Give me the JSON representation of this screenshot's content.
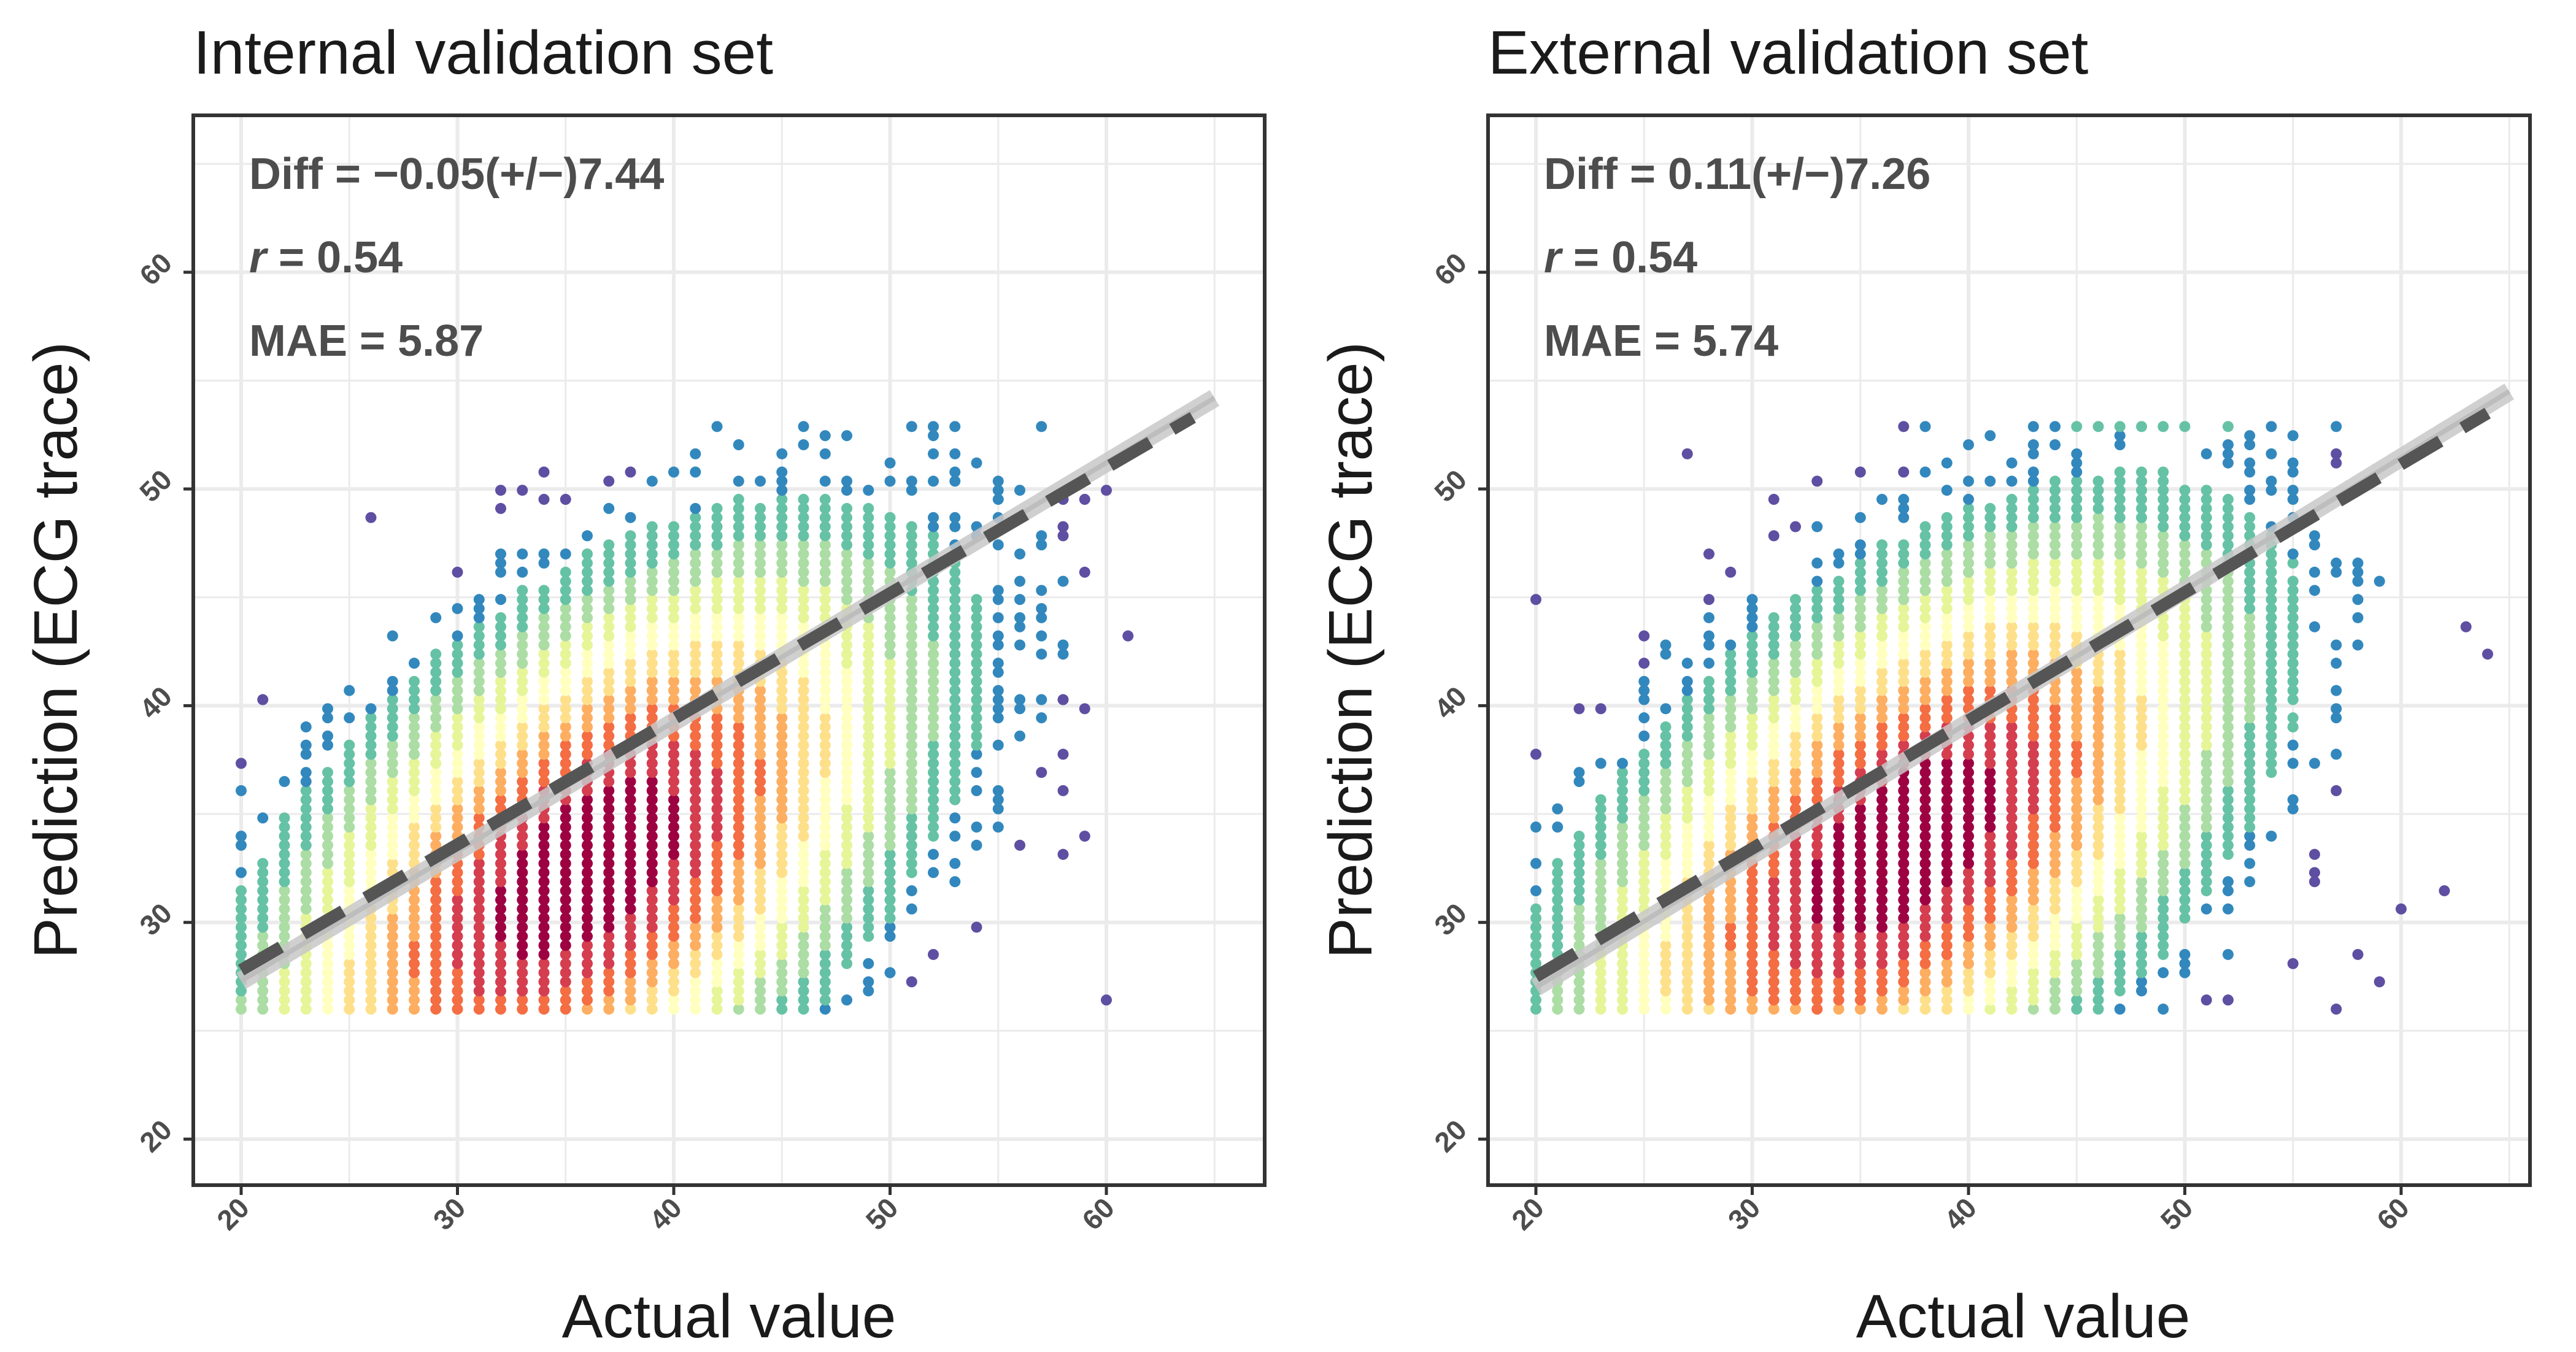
{
  "chart_data": [
    {
      "type": "scatter",
      "title": "Internal validation set",
      "xlabel": "Actual value",
      "ylabel": "Prediction (ECG trace)",
      "xlim": [
        18,
        66
      ],
      "ylim": [
        18,
        66
      ],
      "xticks": [
        "20",
        "30",
        "40",
        "50",
        "60"
      ],
      "yticks": [
        "20",
        "30",
        "40",
        "50",
        "60"
      ],
      "grid": true,
      "color_by": "point density (Spectral palette)",
      "annotations": {
        "diff": "Diff = −0.05(+/−)7.44",
        "r_symbol": "r",
        "r_value": " = 0.54",
        "mae": "MAE = 5.87"
      },
      "x_values_range": [
        20,
        65
      ],
      "y_values_range": [
        26,
        53
      ],
      "density_model": {
        "mean_x": 36,
        "mean_y": 32.5,
        "sd_x": 7.5,
        "sd_y": 7,
        "rho": 0.55
      },
      "fit_line": {
        "x": [
          20,
          64
        ],
        "y": [
          27.8,
          53.3
        ]
      },
      "smooth_line": {
        "x": [
          20,
          65
        ],
        "y": [
          27.3,
          54.2
        ]
      }
    },
    {
      "type": "scatter",
      "title": "External validation set",
      "xlabel": "Actual value",
      "ylabel": "Prediction (ECG trace)",
      "xlim": [
        18,
        65.5
      ],
      "ylim": [
        18,
        66
      ],
      "xticks": [
        "20",
        "30",
        "40",
        "50",
        "60"
      ],
      "yticks": [
        "20",
        "30",
        "40",
        "50",
        "60"
      ],
      "grid": true,
      "color_by": "point density (Spectral palette)",
      "annotations": {
        "diff": "Diff = 0.11(+/−)7.26",
        "r_symbol": "r",
        "r_value": " = 0.54",
        "mae": "MAE = 5.74"
      },
      "x_values_range": [
        20,
        65
      ],
      "y_values_range": [
        26,
        53
      ],
      "density_model": {
        "mean_x": 37,
        "mean_y": 33.5,
        "sd_x": 7.5,
        "sd_y": 7,
        "rho": 0.55
      },
      "fit_line": {
        "x": [
          20,
          64
        ],
        "y": [
          27.5,
          53.5
        ]
      },
      "smooth_line": {
        "x": [
          20,
          65
        ],
        "y": [
          27.0,
          54.5
        ]
      }
    }
  ],
  "palette": [
    "#5E4FA2",
    "#3288BD",
    "#66C2A5",
    "#ABDDA4",
    "#E6F598",
    "#FFFFBF",
    "#FEE08B",
    "#FDAE61",
    "#F46D43",
    "#D53E4F",
    "#9E0142"
  ]
}
